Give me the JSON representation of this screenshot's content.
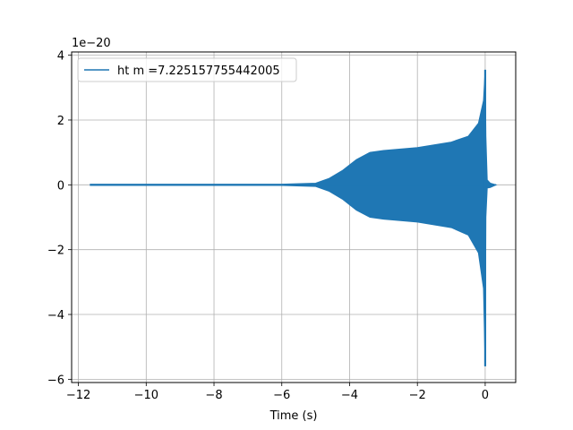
{
  "chart_data": {
    "type": "line",
    "title": "",
    "xlabel": "Time (s)",
    "ylabel": "",
    "y_offset_label": "1e−20",
    "xlim": [
      -12.2,
      0.9
    ],
    "ylim": [
      -6.1,
      4.1
    ],
    "x_ticks": [
      -12,
      -10,
      -8,
      -6,
      -4,
      -2,
      0
    ],
    "y_ticks": [
      -6,
      -4,
      -2,
      0,
      2,
      4
    ],
    "grid": true,
    "legend_position": "top-left",
    "series": [
      {
        "name": "ht m =7.225157755442005",
        "color": "#1f77b4",
        "x_start": -11.65,
        "merger_time": 0.0,
        "x_end": 0.32,
        "envelope": [
          {
            "x": -11.65,
            "upper": 0.02,
            "lower": -0.02
          },
          {
            "x": -6.0,
            "upper": 0.02,
            "lower": -0.02
          },
          {
            "x": -5.0,
            "upper": 0.05,
            "lower": -0.05
          },
          {
            "x": -4.6,
            "upper": 0.2,
            "lower": -0.2
          },
          {
            "x": -4.2,
            "upper": 0.45,
            "lower": -0.45
          },
          {
            "x": -3.8,
            "upper": 0.78,
            "lower": -0.78
          },
          {
            "x": -3.4,
            "upper": 1.0,
            "lower": -1.0
          },
          {
            "x": -3.0,
            "upper": 1.06,
            "lower": -1.06
          },
          {
            "x": -2.0,
            "upper": 1.15,
            "lower": -1.15
          },
          {
            "x": -1.0,
            "upper": 1.32,
            "lower": -1.32
          },
          {
            "x": -0.5,
            "upper": 1.5,
            "lower": -1.55
          },
          {
            "x": -0.2,
            "upper": 1.9,
            "lower": -2.1
          },
          {
            "x": -0.05,
            "upper": 2.6,
            "lower": -3.2
          },
          {
            "x": 0.0,
            "upper": 3.55,
            "lower": -5.6
          },
          {
            "x": 0.02,
            "upper": 1.5,
            "lower": -1.0
          },
          {
            "x": 0.06,
            "upper": 0.15,
            "lower": -0.1
          },
          {
            "x": 0.15,
            "upper": 0.05,
            "lower": -0.08
          },
          {
            "x": 0.32,
            "upper": 0.0,
            "lower": 0.0
          }
        ]
      }
    ]
  }
}
